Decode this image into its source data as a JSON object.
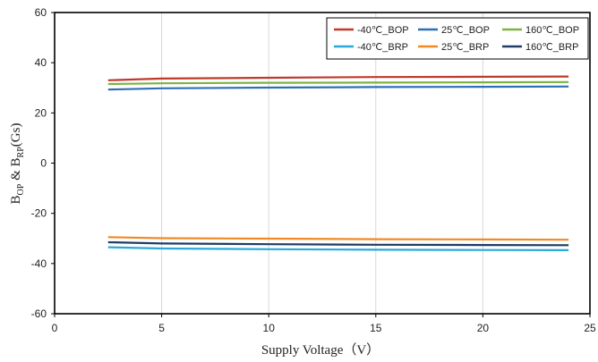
{
  "chart_data": {
    "type": "line",
    "xlabel": "Supply Voltage（V）",
    "ylabel": {
      "main_b1": "B",
      "sub1": "OP",
      "amp": " & ",
      "main_b2": "B",
      "sub2": "RP",
      "unit": "(Gs)"
    },
    "xlim": [
      0,
      25
    ],
    "ylim": [
      -60,
      60
    ],
    "xticks": [
      0,
      5,
      10,
      15,
      20,
      25
    ],
    "yticks": [
      -60,
      -40,
      -20,
      0,
      20,
      40,
      60
    ],
    "grid": "vertical",
    "legend_position": "top-right",
    "series": [
      {
        "name": "-40℃_BOP",
        "color": "#c0392b",
        "x": [
          2.5,
          5,
          10,
          15,
          20,
          24
        ],
        "y": [
          33,
          33.7,
          34,
          34.3,
          34.4,
          34.5
        ]
      },
      {
        "name": "25℃_BOP",
        "color": "#2e6fb7",
        "x": [
          2.5,
          5,
          10,
          15,
          20,
          24
        ],
        "y": [
          29.3,
          29.8,
          30.1,
          30.3,
          30.4,
          30.5
        ]
      },
      {
        "name": "160℃_BOP",
        "color": "#7cb342",
        "x": [
          2.5,
          5,
          10,
          15,
          20,
          24
        ],
        "y": [
          31.5,
          31.8,
          32.0,
          32.1,
          32.2,
          32.3
        ]
      },
      {
        "name": "-40℃_BRP",
        "color": "#29a9d8",
        "x": [
          2.5,
          5,
          10,
          15,
          20,
          24
        ],
        "y": [
          -33.5,
          -34.0,
          -34.3,
          -34.5,
          -34.6,
          -34.7
        ]
      },
      {
        "name": "25℃_BRP",
        "color": "#f08a24",
        "x": [
          2.5,
          5,
          10,
          15,
          20,
          24
        ],
        "y": [
          -29.5,
          -29.9,
          -30.1,
          -30.3,
          -30.4,
          -30.5
        ]
      },
      {
        "name": "160℃_BRP",
        "color": "#1f3b66",
        "x": [
          2.5,
          5,
          10,
          15,
          20,
          24
        ],
        "y": [
          -31.5,
          -32.0,
          -32.3,
          -32.5,
          -32.6,
          -32.7
        ]
      }
    ]
  }
}
